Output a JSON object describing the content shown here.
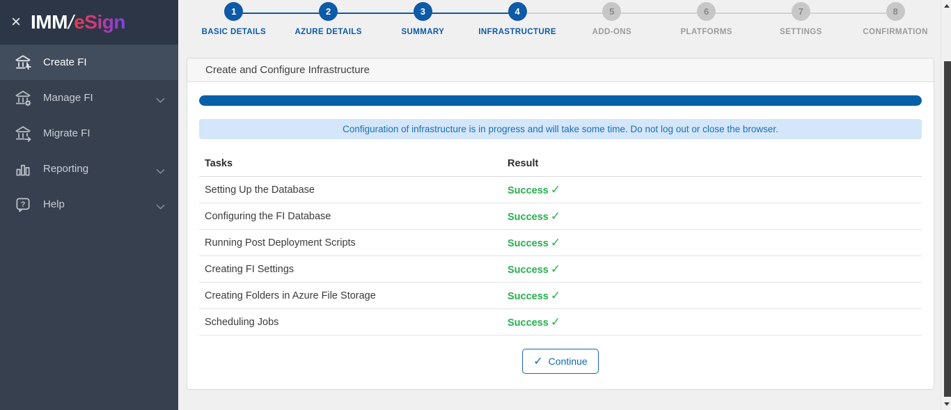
{
  "sidebar": {
    "close_glyph": "×",
    "logo": {
      "imm": "IMM",
      "slash": "/",
      "esign": "eSign"
    },
    "items": [
      {
        "label": "Create FI",
        "icon": "bank-plus-icon",
        "active": true,
        "chevron": false
      },
      {
        "label": "Manage FI",
        "icon": "bank-gear-icon",
        "active": false,
        "chevron": true
      },
      {
        "label": "Migrate FI",
        "icon": "bank-arrow-icon",
        "active": false,
        "chevron": false
      },
      {
        "label": "Reporting",
        "icon": "bar-chart-icon",
        "active": false,
        "chevron": true
      },
      {
        "label": "Help",
        "icon": "help-bubble-icon",
        "active": false,
        "chevron": true
      }
    ]
  },
  "stepper": {
    "steps": [
      {
        "number": "1",
        "label": "BASIC DETAILS",
        "active": true
      },
      {
        "number": "2",
        "label": "AZURE DETAILS",
        "active": true
      },
      {
        "number": "3",
        "label": "SUMMARY",
        "active": true
      },
      {
        "number": "4",
        "label": "INFRASTRUCTURE",
        "active": true
      },
      {
        "number": "5",
        "label": "ADD-ONS",
        "active": false
      },
      {
        "number": "6",
        "label": "PLATFORMS",
        "active": false
      },
      {
        "number": "7",
        "label": "SETTINGS",
        "active": false
      },
      {
        "number": "8",
        "label": "CONFIRMATION",
        "active": false
      }
    ]
  },
  "panel": {
    "title": "Create and Configure Infrastructure",
    "progress_percent": 100,
    "alert": "Configuration of infrastructure is in progress and will take some time. Do not log out or close the browser.",
    "table": {
      "columns": {
        "task": "Tasks",
        "result": "Result"
      },
      "rows": [
        {
          "task": "Setting Up the Database",
          "result": "Success"
        },
        {
          "task": "Configuring the FI Database",
          "result": "Success"
        },
        {
          "task": "Running Post Deployment Scripts",
          "result": "Success"
        },
        {
          "task": "Creating FI Settings",
          "result": "Success"
        },
        {
          "task": "Creating Folders in Azure File Storage",
          "result": "Success"
        },
        {
          "task": "Scheduling Jobs",
          "result": "Success"
        }
      ]
    },
    "check_glyph": "✓",
    "continue_label": "Continue"
  },
  "colors": {
    "accent_blue": "#0d5aa6",
    "progress_blue": "#0560a8",
    "success_green": "#27ae4e",
    "alert_bg": "#d4e6f9",
    "sidebar_bg": "#37404e",
    "sidebar_logo_bg": "#2c3646"
  }
}
